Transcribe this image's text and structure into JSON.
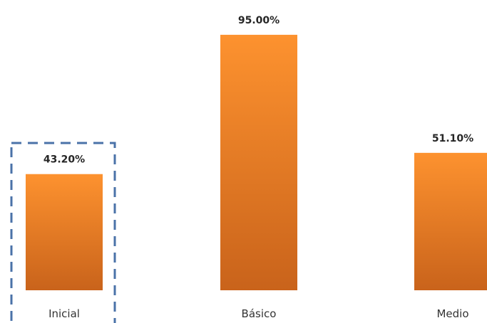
{
  "chart_data": {
    "type": "bar",
    "categories": [
      "Inicial",
      "Básico",
      "Medio"
    ],
    "values": [
      43.2,
      95.0,
      51.1
    ],
    "value_labels": [
      "43.20%",
      "95.00%",
      "51.10%"
    ],
    "title": "",
    "xlabel": "",
    "ylabel": "",
    "ylim": [
      0,
      100
    ],
    "grid": false,
    "legend": "none",
    "highlighted_category": "Inicial",
    "colors": {
      "bar_top": "#fd922f",
      "bar_bottom": "#c9631b",
      "highlight_border": "#4a72a8",
      "label_text": "#262626"
    }
  }
}
